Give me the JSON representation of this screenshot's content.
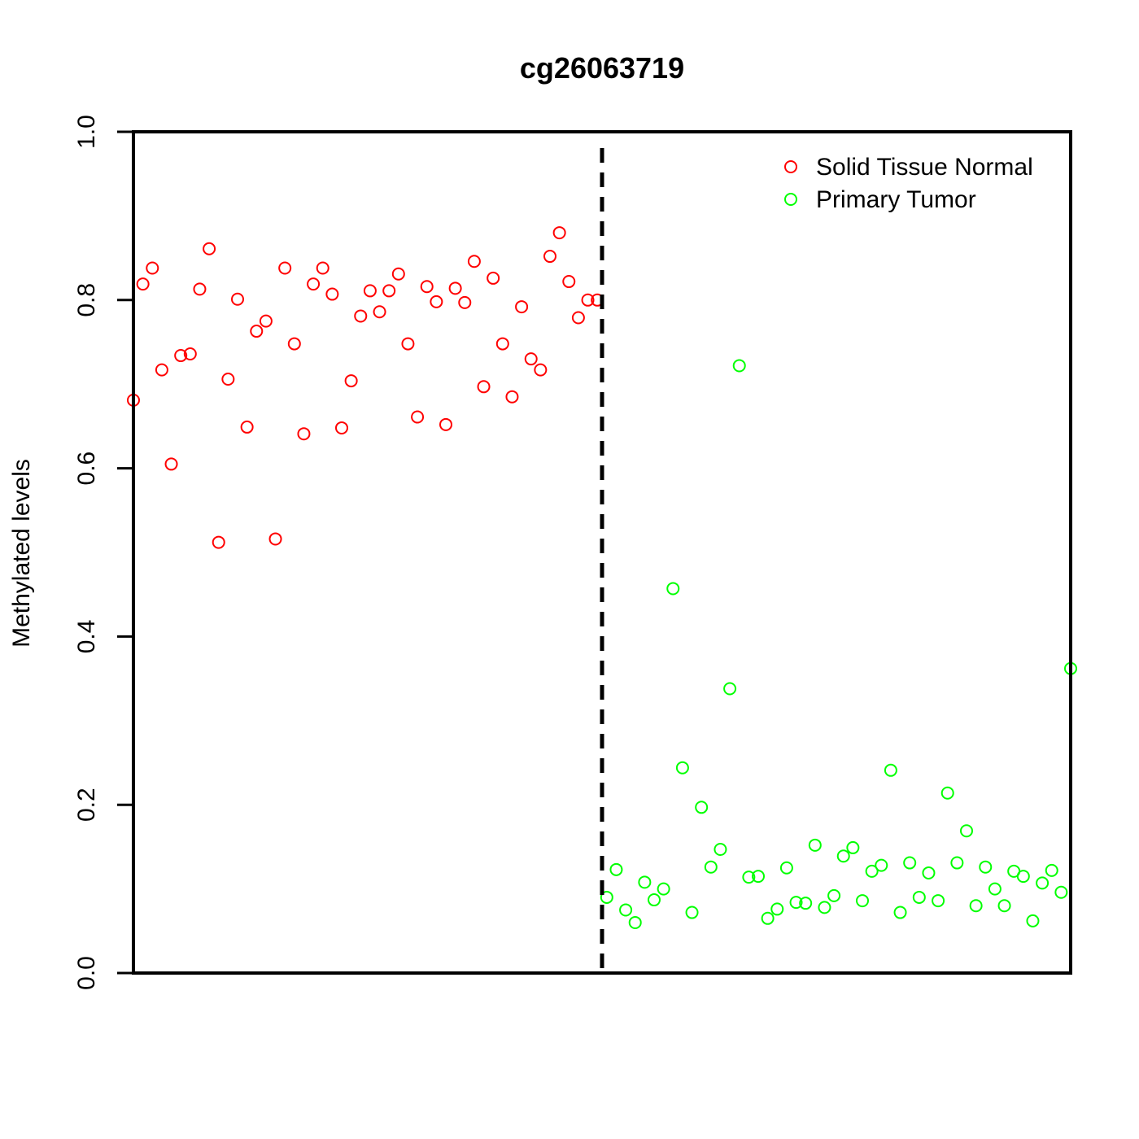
{
  "chart_data": {
    "type": "scatter",
    "title": "cg26063719",
    "xlabel": "",
    "ylabel": "Methylated levels",
    "ylim": [
      0,
      1
    ],
    "yticks": [
      "0.0",
      "0.2",
      "0.4",
      "0.6",
      "0.8",
      "1.0"
    ],
    "ytick_values": [
      0,
      0.2,
      0.4,
      0.6,
      0.8,
      1.0
    ],
    "xlim": [
      1,
      100
    ],
    "grid": false,
    "legend_position": "top-right",
    "divider_x": 50.5,
    "series": [
      {
        "name": "Solid Tissue Normal",
        "color": "#ff0000",
        "marker": "open-circle",
        "x": [
          1,
          2,
          3,
          4,
          5,
          6,
          7,
          8,
          9,
          10,
          11,
          12,
          13,
          14,
          15,
          16,
          17,
          18,
          19,
          20,
          21,
          22,
          23,
          24,
          25,
          26,
          27,
          28,
          29,
          30,
          31,
          32,
          33,
          34,
          35,
          36,
          37,
          38,
          39,
          40,
          41,
          42,
          43,
          44,
          45,
          46,
          47,
          48,
          49,
          50
        ],
        "values": [
          0.681,
          0.819,
          0.838,
          0.717,
          0.605,
          0.734,
          0.736,
          0.813,
          0.861,
          0.512,
          0.706,
          0.801,
          0.649,
          0.763,
          0.775,
          0.516,
          0.838,
          0.748,
          0.641,
          0.819,
          0.838,
          0.807,
          0.648,
          0.704,
          0.781,
          0.811,
          0.786,
          0.811,
          0.831,
          0.748,
          0.661,
          0.816,
          0.798,
          0.652,
          0.814,
          0.797,
          0.846,
          0.697,
          0.826,
          0.748,
          0.685,
          0.792,
          0.73,
          0.717,
          0.852,
          0.88,
          0.822,
          0.779,
          0.8,
          0.8
        ]
      },
      {
        "name": "Primary Tumor",
        "color": "#00ff00",
        "marker": "open-circle",
        "x": [
          51,
          52,
          53,
          54,
          55,
          56,
          57,
          58,
          59,
          60,
          61,
          62,
          63,
          64,
          65,
          66,
          67,
          68,
          69,
          70,
          71,
          72,
          73,
          74,
          75,
          76,
          77,
          78,
          79,
          80,
          81,
          82,
          83,
          84,
          85,
          86,
          87,
          88,
          89,
          90,
          91,
          92,
          93,
          94,
          95,
          96,
          97,
          98,
          99,
          100
        ],
        "values": [
          0.09,
          0.123,
          0.075,
          0.06,
          0.108,
          0.087,
          0.1,
          0.457,
          0.244,
          0.072,
          0.197,
          0.126,
          0.147,
          0.338,
          0.722,
          0.114,
          0.115,
          0.065,
          0.076,
          0.125,
          0.084,
          0.083,
          0.152,
          0.078,
          0.092,
          0.139,
          0.149,
          0.086,
          0.121,
          0.128,
          0.241,
          0.072,
          0.131,
          0.09,
          0.119,
          0.086,
          0.214,
          0.131,
          0.169,
          0.08,
          0.126,
          0.1,
          0.08,
          0.121,
          0.115,
          0.062,
          0.107,
          0.122,
          0.096,
          0.362
        ]
      }
    ]
  }
}
